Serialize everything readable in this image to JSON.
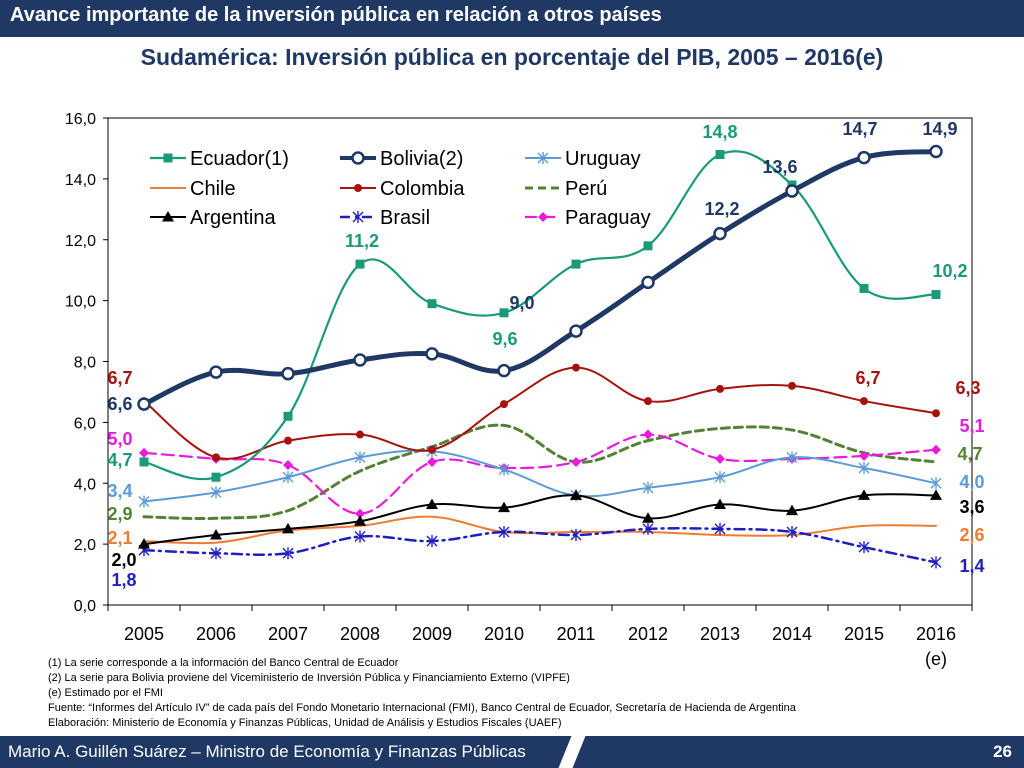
{
  "header": {
    "banner": "Avance importante de la inversión pública en relación a otros países",
    "title": "Sudamérica: Inversión pública en porcentaje del PIB, 2005 – 2016(e)"
  },
  "chart_data": {
    "type": "line",
    "title": "Sudamérica: Inversión pública en porcentaje del PIB, 2005 – 2016(e)",
    "xlabel": "",
    "ylabel": "",
    "categories": [
      "2005",
      "2006",
      "2007",
      "2008",
      "2009",
      "2010",
      "2011",
      "2012",
      "2013",
      "2014",
      "2015",
      "2016"
    ],
    "category_sublabel": "(e)",
    "ylim": [
      0,
      16
    ],
    "yticks": [
      "0,0",
      "2,0",
      "4,0",
      "6,0",
      "8,0",
      "10,0",
      "12,0",
      "14,0",
      "16,0"
    ],
    "legend_position": "top-left",
    "series": [
      {
        "name": "Ecuador(1)",
        "color": "#1a9a7a",
        "values": [
          4.7,
          4.2,
          6.2,
          11.2,
          9.9,
          9.6,
          11.2,
          11.8,
          14.8,
          13.8,
          10.4,
          10.2
        ],
        "marker": "square"
      },
      {
        "name": "Bolivia(2)",
        "color": "#1f3864",
        "values": [
          6.6,
          7.65,
          7.6,
          8.05,
          8.25,
          7.7,
          9.0,
          10.6,
          12.2,
          13.6,
          14.7,
          14.9
        ],
        "marker": "circle"
      },
      {
        "name": "Uruguay",
        "color": "#5b9bd5",
        "values": [
          3.4,
          3.7,
          4.2,
          4.85,
          5.05,
          4.45,
          3.6,
          3.85,
          4.2,
          4.85,
          4.5,
          4.0
        ],
        "marker": "star"
      },
      {
        "name": "Chile",
        "color": "#ed7d31",
        "values": [
          2.1,
          2.05,
          2.45,
          2.6,
          2.9,
          2.4,
          2.4,
          2.4,
          2.3,
          2.3,
          2.6,
          2.6
        ],
        "marker": "none"
      },
      {
        "name": "Colombia",
        "color": "#a6120d",
        "values": [
          6.7,
          4.85,
          5.4,
          5.6,
          5.1,
          6.6,
          7.8,
          6.7,
          7.1,
          7.2,
          6.7,
          6.3
        ],
        "marker": "circle-small"
      },
      {
        "name": "Perú",
        "color": "#548235",
        "values": [
          2.9,
          2.85,
          3.1,
          4.4,
          5.2,
          5.9,
          4.7,
          5.4,
          5.8,
          5.75,
          5.0,
          4.7
        ],
        "marker": "none"
      },
      {
        "name": "Argentina",
        "color": "#000000",
        "values": [
          2.0,
          2.3,
          2.5,
          2.75,
          3.3,
          3.2,
          3.6,
          2.85,
          3.3,
          3.1,
          3.6,
          3.6
        ],
        "marker": "triangle"
      },
      {
        "name": "Brasil",
        "color": "#1f1fbf",
        "values": [
          1.8,
          1.7,
          1.7,
          2.25,
          2.1,
          2.4,
          2.3,
          2.5,
          2.5,
          2.4,
          1.9,
          1.4
        ],
        "marker": "star"
      },
      {
        "name": "Paraguay",
        "color": "#e81bdc",
        "values": [
          5.0,
          4.8,
          4.6,
          3.0,
          4.7,
          4.5,
          4.7,
          5.6,
          4.8,
          4.8,
          4.9,
          5.1
        ],
        "marker": "diamond"
      }
    ],
    "data_labels": [
      {
        "text": "14,8",
        "color": "#1a9a7a"
      },
      {
        "text": "11,2",
        "color": "#1a9a7a"
      },
      {
        "text": "9,6",
        "color": "#1a9a7a"
      },
      {
        "text": "10,2",
        "color": "#1a9a7a"
      },
      {
        "text": "4,7",
        "color": "#1a9a7a"
      },
      {
        "text": "4,7",
        "color": "#548235"
      },
      {
        "text": "14,7",
        "color": "#1f3864"
      },
      {
        "text": "14,9",
        "color": "#1f3864"
      },
      {
        "text": "13,6",
        "color": "#1f3864"
      },
      {
        "text": "12,2",
        "color": "#1f3864"
      },
      {
        "text": "9,0",
        "color": "#1f3864"
      },
      {
        "text": "6,6",
        "color": "#1f3864"
      },
      {
        "text": "6,7",
        "color": "#a6120d"
      },
      {
        "text": "6,7",
        "color": "#a6120d"
      },
      {
        "text": "6,3",
        "color": "#a6120d"
      },
      {
        "text": "5,0",
        "color": "#e81bdc"
      },
      {
        "text": "5,1",
        "color": "#e81bdc"
      },
      {
        "text": "3,4",
        "color": "#5b9bd5"
      },
      {
        "text": "4,0",
        "color": "#5b9bd5"
      },
      {
        "text": "2,9",
        "color": "#548235"
      },
      {
        "text": "2,1",
        "color": "#ed7d31"
      },
      {
        "text": "2,6",
        "color": "#ed7d31"
      },
      {
        "text": "2,0",
        "color": "#000000"
      },
      {
        "text": "3,6",
        "color": "#000000"
      },
      {
        "text": "1,8",
        "color": "#1f1fbf"
      },
      {
        "text": "1,4",
        "color": "#1f1fbf"
      }
    ]
  },
  "notes": {
    "n1": "(1)   La serie corresponde a la información del Banco Central de Ecuador",
    "n2": "(2)   La serie para Bolivia proviene del Viceministerio de Inversión Pública y Financiamiento Externo (VIPFE)",
    "n3": "(e) Estimado por el FMI",
    "n4": "Fuente: “Informes del Artículo IV” de cada país del Fondo Monetario Internacional (FMI), Banco Central de Ecuador, Secretaría de Hacienda de Argentina",
    "n5": "Elaboración: Ministerio de Economía y Finanzas Públicas, Unidad de Análisis y Estudios Fiscales (UAEF)"
  },
  "footer": {
    "presenter": "Mario A. Guillén Suárez – Ministro de Economía y Finanzas Públicas",
    "page": "26"
  }
}
